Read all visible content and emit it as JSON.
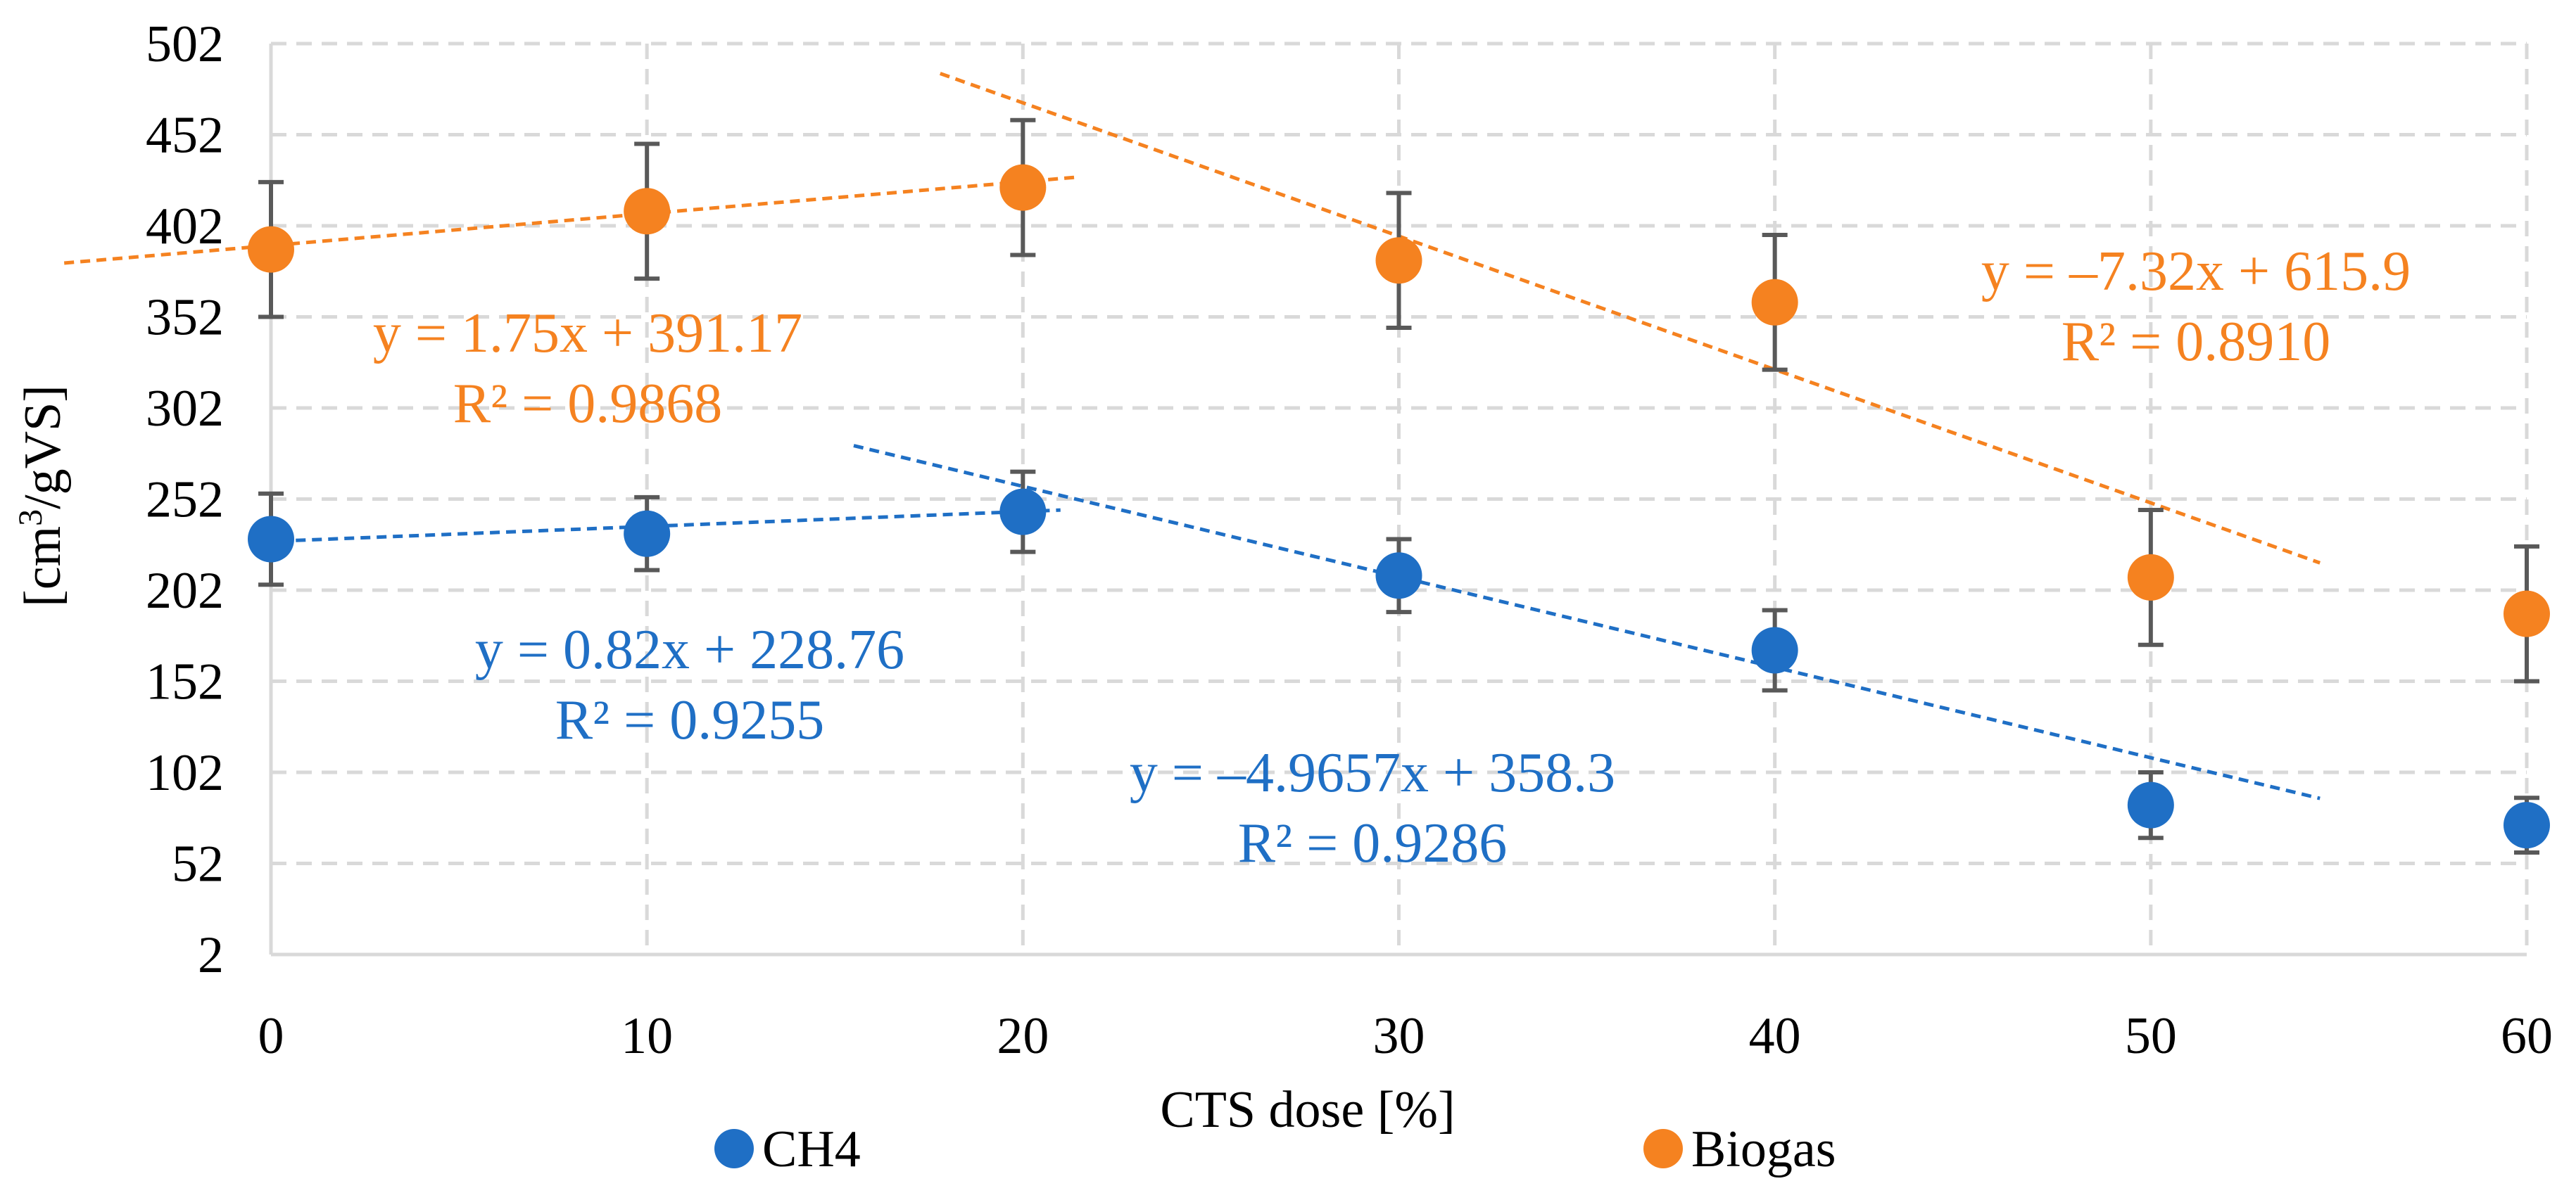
{
  "chart_data": {
    "type": "scatter",
    "title": "",
    "xlabel": "CTS dose [%]",
    "ylabel_main": "[cm",
    "ylabel_sup": "3",
    "ylabel_tail": "/gVS]",
    "xlim": [
      0,
      60
    ],
    "ylim": [
      2,
      502
    ],
    "x_ticks": [
      0,
      10,
      20,
      30,
      40,
      50,
      60
    ],
    "y_ticks": [
      2,
      52,
      102,
      152,
      202,
      252,
      302,
      352,
      402,
      452,
      502
    ],
    "grid": true,
    "legend_position": "bottom",
    "series": [
      {
        "name": "CH4",
        "color": "#1f6fc5",
        "points": [
          {
            "x": 0,
            "y": 230,
            "err": 25
          },
          {
            "x": 10,
            "y": 233,
            "err": 20
          },
          {
            "x": 20,
            "y": 245,
            "err": 22
          },
          {
            "x": 30,
            "y": 210,
            "err": 20
          },
          {
            "x": 40,
            "y": 169,
            "err": 22
          },
          {
            "x": 50,
            "y": 84,
            "err": 18
          },
          {
            "x": 60,
            "y": 73,
            "err": 15
          }
        ],
        "trendlines": [
          {
            "slope": 0.82,
            "intercept": 228.76,
            "x_from": -0.2,
            "x_to": 21,
            "equation": "y = 0.82x + 228.76",
            "r2": "R² = 0.9255"
          },
          {
            "slope": -4.9657,
            "intercept": 358.3,
            "x_from": 15.5,
            "x_to": 54.5,
            "equation": "y = –4.9657x + 358.3",
            "r2": "R² = 0.9286"
          }
        ]
      },
      {
        "name": "Biogas",
        "color": "#f58220",
        "points": [
          {
            "x": 0,
            "y": 389,
            "err": 37
          },
          {
            "x": 10,
            "y": 410,
            "err": 37
          },
          {
            "x": 20,
            "y": 423,
            "err": 37
          },
          {
            "x": 30,
            "y": 383,
            "err": 37
          },
          {
            "x": 40,
            "y": 360,
            "err": 37
          },
          {
            "x": 50,
            "y": 209,
            "err": 37
          },
          {
            "x": 60,
            "y": 189,
            "err": 37
          }
        ],
        "trendlines": [
          {
            "slope": 1.75,
            "intercept": 391.17,
            "x_from": -5.5,
            "x_to": 21.5,
            "equation": "y = 1.75x + 391.17",
            "r2": "R² = 0.9868"
          },
          {
            "slope": -7.32,
            "intercept": 615.9,
            "x_from": 17.8,
            "x_to": 54.5,
            "equation": "y = –7.32x + 615.9",
            "r2": "R² = 0.8910"
          }
        ]
      }
    ]
  }
}
